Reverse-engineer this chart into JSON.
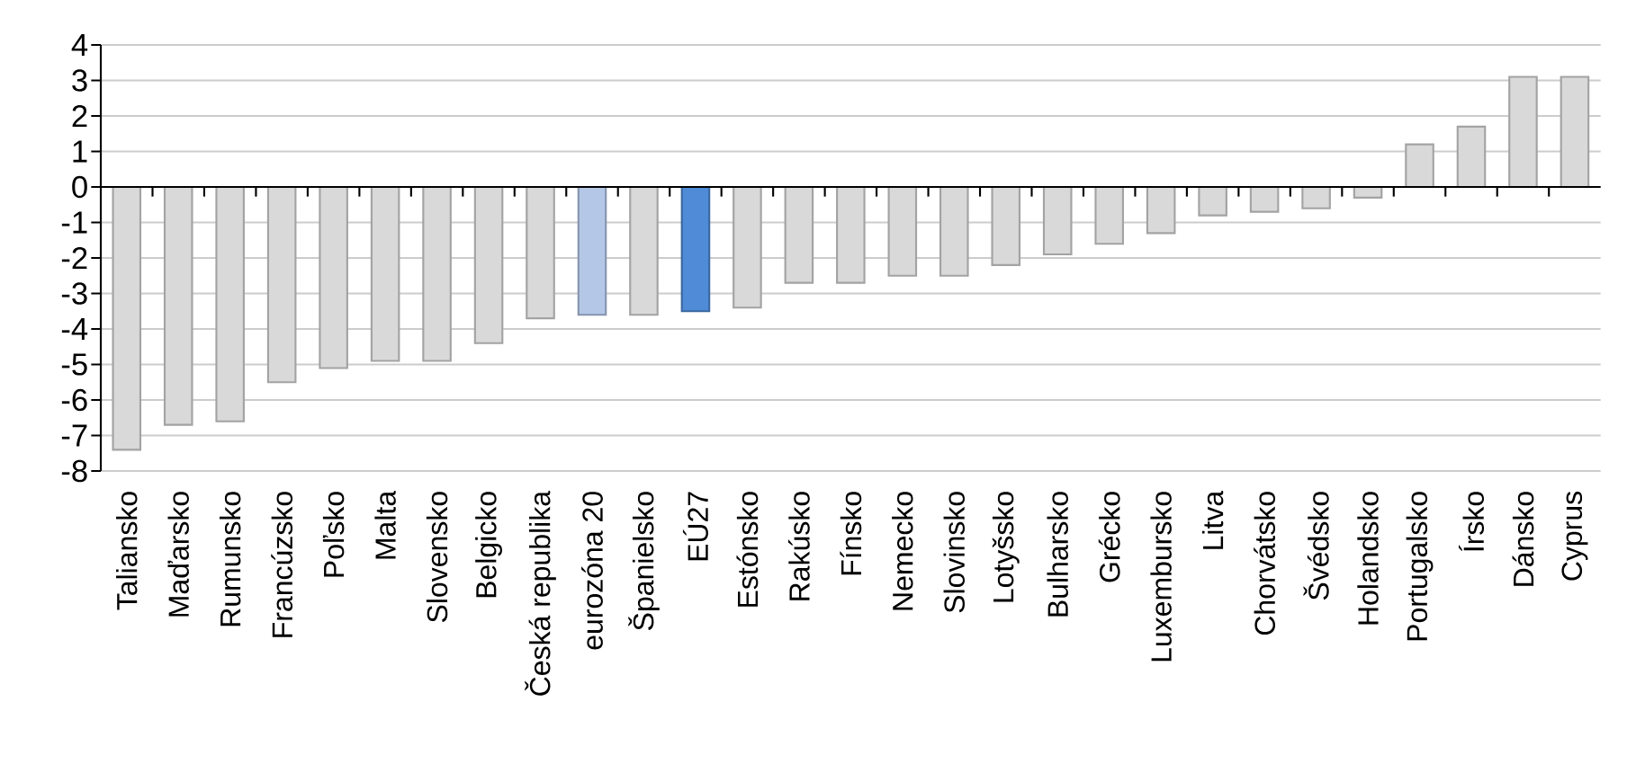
{
  "chart_data": {
    "type": "bar",
    "categories": [
      "Taliansko",
      "Maďarsko",
      "Rumunsko",
      "Francúzsko",
      "Poľsko",
      "Malta",
      "Slovensko",
      "Belgicko",
      "Česká republika",
      "eurozóna 20",
      "Španielsko",
      "EÚ27",
      "Estónsko",
      "Rakúsko",
      "Fínsko",
      "Nemecko",
      "Slovinsko",
      "Lotyšsko",
      "Bulharsko",
      "Grécko",
      "Luxembursko",
      "Litva",
      "Chorvátsko",
      "Švédsko",
      "Holandsko",
      "Portugalsko",
      "Írsko",
      "Dánsko",
      "Cyprus"
    ],
    "values": [
      -7.4,
      -6.7,
      -6.6,
      -5.5,
      -5.1,
      -4.9,
      -4.9,
      -4.4,
      -3.7,
      -3.6,
      -3.6,
      -3.5,
      -3.4,
      -2.7,
      -2.7,
      -2.5,
      -2.5,
      -2.2,
      -1.9,
      -1.6,
      -1.3,
      -0.8,
      -0.7,
      -0.6,
      -0.3,
      1.2,
      1.7,
      3.1,
      3.1
    ],
    "colors": [
      "#d9d9d9",
      "#d9d9d9",
      "#d9d9d9",
      "#d9d9d9",
      "#d9d9d9",
      "#d9d9d9",
      "#d9d9d9",
      "#d9d9d9",
      "#d9d9d9",
      "#b4c7e7",
      "#d9d9d9",
      "#4f8bd6",
      "#d9d9d9",
      "#d9d9d9",
      "#d9d9d9",
      "#d9d9d9",
      "#d9d9d9",
      "#d9d9d9",
      "#d9d9d9",
      "#d9d9d9",
      "#d9d9d9",
      "#d9d9d9",
      "#d9d9d9",
      "#d9d9d9",
      "#d9d9d9",
      "#d9d9d9",
      "#d9d9d9",
      "#d9d9d9",
      "#d9d9d9"
    ],
    "ylim": [
      -8,
      4
    ],
    "yticks": [
      -8,
      -7,
      -6,
      -5,
      -4,
      -3,
      -2,
      -1,
      0,
      1,
      2,
      3,
      4
    ],
    "grid": "y"
  }
}
